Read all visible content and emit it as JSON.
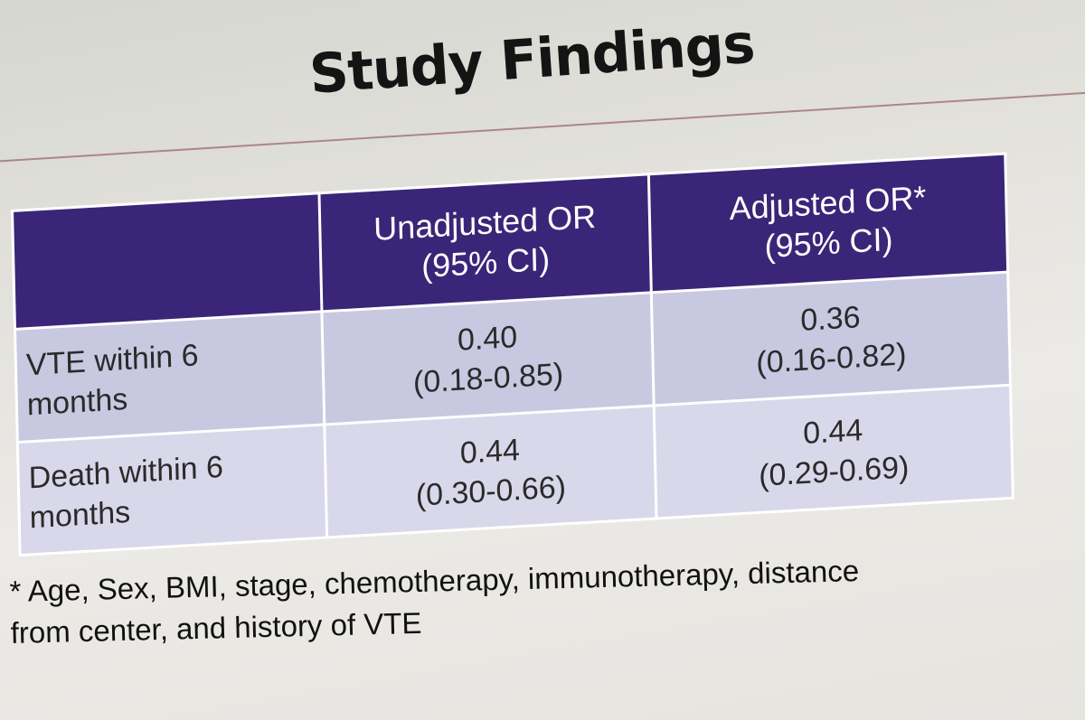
{
  "slide": {
    "title": "Study Findings",
    "table": {
      "headers": [
        "",
        "Unadjusted OR",
        "(95% CI)",
        "Adjusted OR*",
        "(95% CI)"
      ],
      "columns": [
        {
          "line1": "Unadjusted OR",
          "line2": "(95% CI)"
        },
        {
          "line1": "Adjusted OR*",
          "line2": "(95% CI)"
        }
      ],
      "rows": [
        {
          "label_line1": "VTE within 6",
          "label_line2": "months",
          "unadjusted_value": "0.40",
          "unadjusted_ci": "(0.18-0.85)",
          "adjusted_value": "0.36",
          "adjusted_ci": "(0.16-0.82)"
        },
        {
          "label_line1": "Death within 6",
          "label_line2": "months",
          "unadjusted_value": "0.44",
          "unadjusted_ci": "(0.30-0.66)",
          "adjusted_value": "0.44",
          "adjusted_ci": "(0.29-0.69)"
        }
      ]
    },
    "footnote_line1": "* Age, Sex, BMI, stage, chemotherapy, immunotherapy, distance",
    "footnote_line2": "from center, and history of VTE"
  },
  "colors": {
    "header_bg": "#3b2578",
    "row_a_bg": "#c9c8e1",
    "row_b_bg": "#d9d8ea",
    "rule": "#9a6a6a"
  }
}
